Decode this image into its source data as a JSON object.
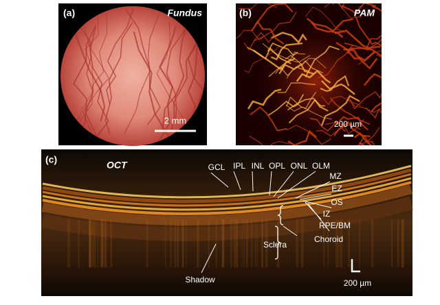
{
  "panels": [
    {
      "label": "(a)",
      "title": "Fundus",
      "scale_bar": "2 mm"
    },
    {
      "label": "(b)",
      "title": "PAM",
      "scale_bar": "200 µm"
    },
    {
      "label": "(c)",
      "title": "OCT",
      "layers": [
        "GCL",
        "IPL",
        "INL",
        "OPL",
        "ONL",
        "OLM",
        "MZ",
        "EZ",
        "OS",
        "IZ",
        "RPE/BM"
      ],
      "choroid": "Choroid",
      "sclera": "Sclera",
      "shadow": "Shadow",
      "scale_bar": "200 µm"
    }
  ]
}
